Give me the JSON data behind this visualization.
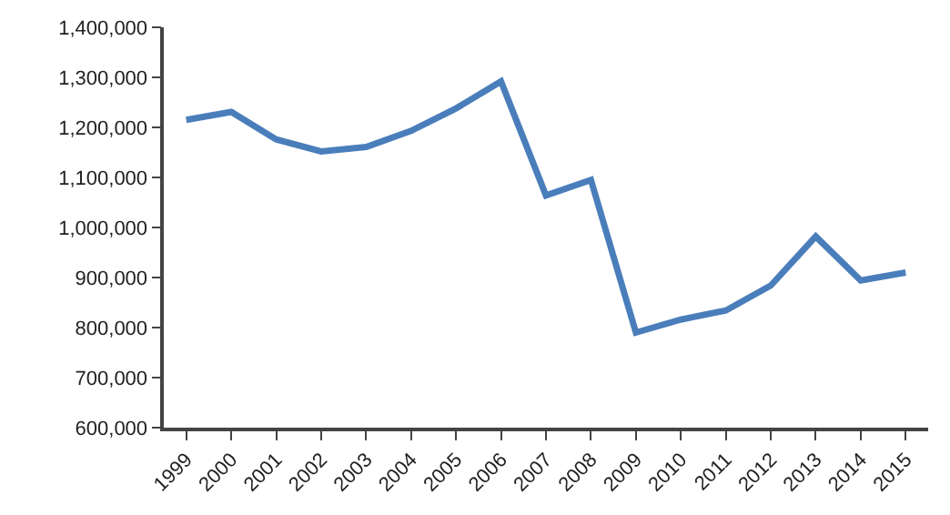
{
  "chart_data": {
    "type": "line",
    "categories": [
      "1999",
      "2000",
      "2001",
      "2002",
      "2003",
      "2004",
      "2005",
      "2006",
      "2007",
      "2008",
      "2009",
      "2010",
      "2011",
      "2012",
      "2013",
      "2014",
      "2015"
    ],
    "series": [
      {
        "color": "#4a7ebb",
        "values": [
          1215000,
          1231000,
          1176000,
          1152000,
          1161000,
          1193000,
          1238000,
          1292000,
          1064000,
          1095000,
          790000,
          816000,
          834000,
          884000,
          982000,
          894000,
          910000
        ]
      }
    ],
    "ylim": [
      600000,
      1400000
    ],
    "yticks": [
      {
        "value": 600000,
        "label": "600,000"
      },
      {
        "value": 700000,
        "label": "700,000"
      },
      {
        "value": 800000,
        "label": "800,000"
      },
      {
        "value": 900000,
        "label": "900,000"
      },
      {
        "value": 1000000,
        "label": "1,000,000"
      },
      {
        "value": 1100000,
        "label": "1,100,000"
      },
      {
        "value": 1200000,
        "label": "1,200,000"
      },
      {
        "value": 1300000,
        "label": "1,300,000"
      },
      {
        "value": 1400000,
        "label": "1,400,000"
      }
    ],
    "marker": "none",
    "line_style": "solid"
  }
}
